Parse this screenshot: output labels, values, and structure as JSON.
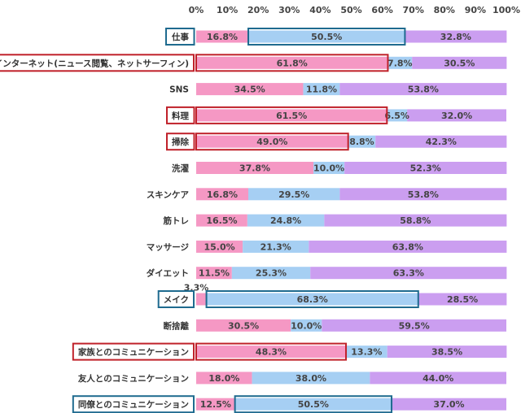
{
  "chart_data": {
    "type": "bar",
    "orientation": "horizontal",
    "stacked": true,
    "percent_stacked": true,
    "xlim": [
      0,
      100
    ],
    "xticks": [
      "0%",
      "10%",
      "20%",
      "30%",
      "40%",
      "50%",
      "60%",
      "70%",
      "80%",
      "90%",
      "100%"
    ],
    "categories": [
      "仕事",
      "インターネット(ニュース閲覧、ネットサーフィン)",
      "SNS",
      "料理",
      "掃除",
      "洗濯",
      "スキンケア",
      "筋トレ",
      "マッサージ",
      "ダイエット",
      "メイク",
      "断捨離",
      "家族とのコミュニケーション",
      "友人とのコミュニケーション",
      "同僚とのコミュニケーション"
    ],
    "series": [
      {
        "values": [
          16.8,
          61.8,
          34.5,
          61.5,
          49.0,
          37.8,
          16.8,
          16.5,
          15.0,
          11.5,
          3.3,
          30.5,
          48.3,
          18.0,
          12.5
        ]
      },
      {
        "values": [
          50.5,
          7.8,
          11.8,
          6.5,
          8.8,
          10.0,
          29.5,
          24.8,
          21.3,
          25.3,
          68.3,
          10.0,
          13.3,
          38.0,
          50.5
        ]
      },
      {
        "values": [
          32.8,
          30.5,
          53.8,
          32.0,
          42.3,
          52.3,
          53.8,
          58.8,
          63.8,
          63.3,
          28.5,
          59.5,
          38.5,
          44.0,
          37.0
        ]
      }
    ],
    "labels": [
      [
        "16.8%",
        "50.5%",
        "32.8%"
      ],
      [
        "61.8%",
        "7.8%",
        "30.5%"
      ],
      [
        "34.5%",
        "11.8%",
        "53.8%"
      ],
      [
        "61.5%",
        "6.5%",
        "32.0%"
      ],
      [
        "49.0%",
        "8.8%",
        "42.3%"
      ],
      [
        "37.8%",
        "10.0%",
        "52.3%"
      ],
      [
        "16.8%",
        "29.5%",
        "53.8%"
      ],
      [
        "16.5%",
        "24.8%",
        "58.8%"
      ],
      [
        "15.0%",
        "21.3%",
        "63.8%"
      ],
      [
        "11.5%",
        "25.3%",
        "63.3%"
      ],
      [
        "3.3%",
        "68.3%",
        "28.5%"
      ],
      [
        "30.5%",
        "10.0%",
        "59.5%"
      ],
      [
        "48.3%",
        "13.3%",
        "38.5%"
      ],
      [
        "18.0%",
        "38.0%",
        "44.0%"
      ],
      [
        "12.5%",
        "50.5%",
        "37.0%"
      ]
    ],
    "colors": [
      "#f598c4",
      "#a6cff3",
      "#cb9ef0"
    ],
    "highlights": [
      {
        "category": 0,
        "series": 1,
        "color": "#1f6b8f"
      },
      {
        "category": 1,
        "series": 0,
        "color": "#c0212a"
      },
      {
        "category": 3,
        "series": 0,
        "color": "#c0212a"
      },
      {
        "category": 4,
        "series": 0,
        "color": "#c0212a"
      },
      {
        "category": 10,
        "series": 1,
        "color": "#1f6b8f"
      },
      {
        "category": 12,
        "series": 0,
        "color": "#c0212a"
      },
      {
        "category": 14,
        "series": 1,
        "color": "#1f6b8f"
      }
    ],
    "grid": false,
    "legend": "none"
  }
}
